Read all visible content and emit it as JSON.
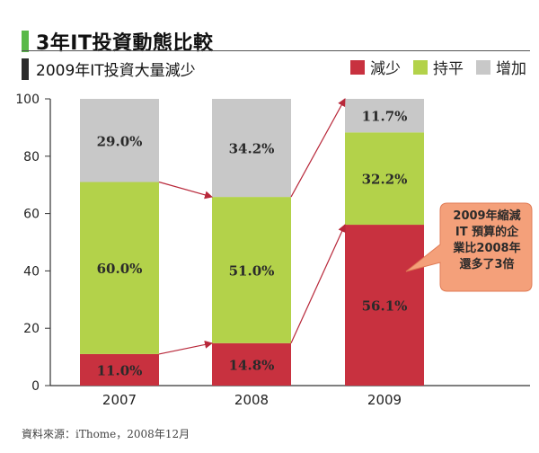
{
  "header": {
    "title": "3年IT投資動態比較",
    "subtitle": "2009年IT投資大量減少"
  },
  "colors": {
    "decrease": "#c8313f",
    "flat": "#b3d24a",
    "increase": "#c8c8c8",
    "arrow": "#b8283a",
    "callout_fill": "#f4a07a",
    "callout_stroke": "#e07b55",
    "title_bar_green": "#58b947",
    "title_bar_dark": "#2b2b2b"
  },
  "legend": [
    {
      "label": "減少",
      "color_key": "decrease"
    },
    {
      "label": "持平",
      "color_key": "flat"
    },
    {
      "label": "增加",
      "color_key": "increase"
    }
  ],
  "chart_data": {
    "type": "bar",
    "stacked": true,
    "categories": [
      "2007",
      "2008",
      "2009"
    ],
    "series": [
      {
        "name": "減少",
        "values": [
          11.0,
          14.8,
          56.1
        ],
        "labels": [
          "11.0%",
          "14.8%",
          "56.1%"
        ]
      },
      {
        "name": "持平",
        "values": [
          60.0,
          51.0,
          32.2
        ],
        "labels": [
          "60.0%",
          "51.0%",
          "32.2%"
        ]
      },
      {
        "name": "增加",
        "values": [
          29.0,
          34.2,
          11.7
        ],
        "labels": [
          "29.0%",
          "34.2%",
          "11.7%"
        ]
      }
    ],
    "ylim": [
      0,
      100
    ],
    "yticks": [
      "0",
      "20",
      "40",
      "60",
      "80",
      "100"
    ],
    "grid": false,
    "legend_position": "top-right"
  },
  "callout": {
    "lines": [
      "2009年縮減",
      "IT 預算的企",
      "業比2008年",
      "還多了3倍"
    ]
  },
  "source": "資料來源：iThome，2008年12月"
}
